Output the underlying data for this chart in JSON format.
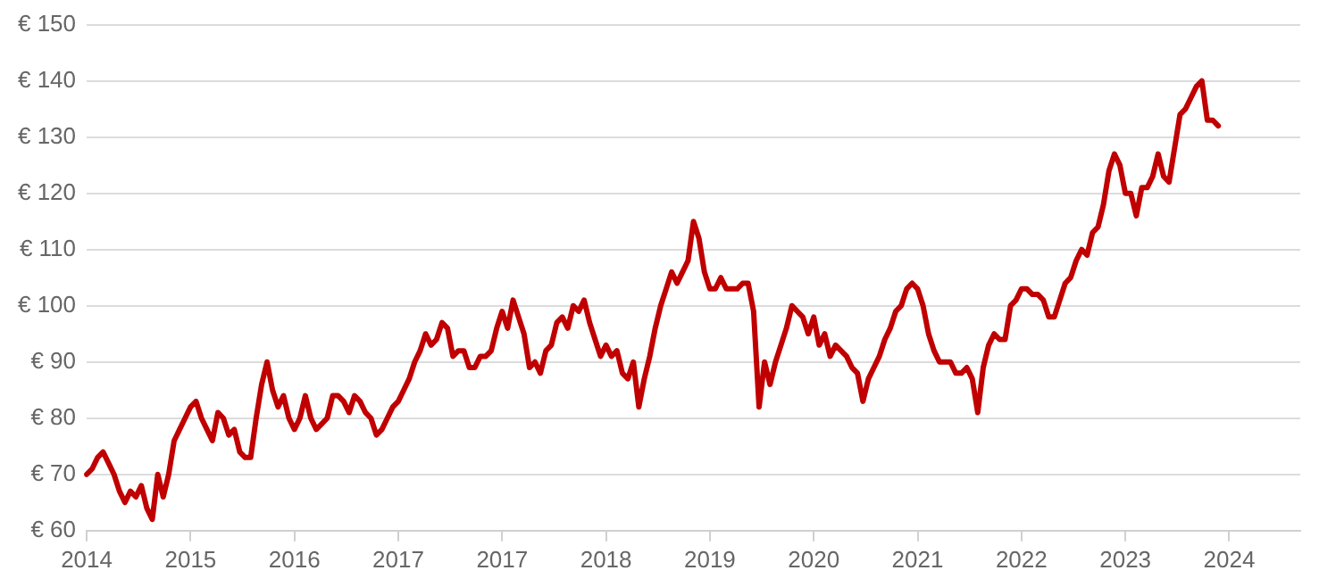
{
  "chart_data": {
    "type": "line",
    "grid": "y",
    "marker": "none",
    "line_style": "solid",
    "legend": false,
    "ylim": [
      60,
      150
    ],
    "yticks": [
      {
        "value": 60,
        "label": "€ 60"
      },
      {
        "value": 70,
        "label": "€ 70"
      },
      {
        "value": 80,
        "label": "€ 80"
      },
      {
        "value": 90,
        "label": "€ 90"
      },
      {
        "value": 100,
        "label": "€ 100"
      },
      {
        "value": 110,
        "label": "€ 110"
      },
      {
        "value": 120,
        "label": "€ 120"
      },
      {
        "value": 130,
        "label": "€ 130"
      },
      {
        "value": 140,
        "label": "€ 140"
      },
      {
        "value": 150,
        "label": "€ 150"
      }
    ],
    "categories": [
      "2014",
      null,
      null,
      null,
      null,
      null,
      null,
      null,
      null,
      null,
      null,
      null,
      null,
      null,
      null,
      null,
      null,
      null,
      null,
      "2015",
      null,
      null,
      null,
      null,
      null,
      null,
      null,
      null,
      null,
      null,
      null,
      null,
      null,
      null,
      null,
      null,
      null,
      null,
      "2016",
      null,
      null,
      null,
      null,
      null,
      null,
      null,
      null,
      null,
      null,
      null,
      null,
      null,
      null,
      null,
      null,
      null,
      null,
      "2017",
      null,
      null,
      null,
      null,
      null,
      null,
      null,
      null,
      null,
      null,
      null,
      null,
      null,
      null,
      null,
      null,
      null,
      null,
      "2017",
      null,
      null,
      null,
      null,
      null,
      null,
      null,
      null,
      null,
      null,
      null,
      null,
      null,
      null,
      null,
      null,
      null,
      null,
      "2018",
      null,
      null,
      null,
      null,
      null,
      null,
      null,
      null,
      null,
      null,
      null,
      null,
      null,
      null,
      null,
      null,
      null,
      null,
      "2019",
      null,
      null,
      null,
      null,
      null,
      null,
      null,
      null,
      null,
      null,
      null,
      null,
      null,
      null,
      null,
      null,
      null,
      null,
      "2020",
      null,
      null,
      null,
      null,
      null,
      null,
      null,
      null,
      null,
      null,
      null,
      null,
      null,
      null,
      null,
      null,
      null,
      null,
      "2021",
      null,
      null,
      null,
      null,
      null,
      null,
      null,
      null,
      null,
      null,
      null,
      null,
      null,
      null,
      null,
      null,
      null,
      null,
      "2022",
      null,
      null,
      null,
      null,
      null,
      null,
      null,
      null,
      null,
      null,
      null,
      null,
      null,
      null,
      null,
      null,
      null,
      null,
      "2023",
      null,
      null,
      null,
      null,
      null,
      null,
      null,
      null,
      null,
      null,
      null,
      null,
      null,
      null,
      null,
      null,
      null,
      null,
      "2024",
      null,
      null,
      null,
      null,
      null,
      null,
      null,
      null,
      null,
      null,
      null,
      null,
      null
    ],
    "series": [
      {
        "color": "#c00000",
        "values": [
          70,
          71,
          73,
          74,
          72,
          70,
          67,
          65,
          67,
          66,
          68,
          64,
          62,
          70,
          66,
          70,
          76,
          78,
          80,
          82,
          83,
          80,
          78,
          76,
          81,
          80,
          77,
          78,
          74,
          73,
          73,
          80,
          86,
          90,
          85,
          82,
          84,
          80,
          78,
          80,
          84,
          80,
          78,
          79,
          80,
          84,
          84,
          83,
          81,
          84,
          83,
          81,
          80,
          77,
          78,
          80,
          82,
          83,
          85,
          87,
          90,
          92,
          95,
          93,
          94,
          97,
          96,
          91,
          92,
          92,
          89,
          89,
          91,
          91,
          92,
          96,
          99,
          96,
          101,
          98,
          95,
          89,
          90,
          88,
          92,
          93,
          97,
          98,
          96,
          100,
          99,
          101,
          97,
          94,
          91,
          93,
          91,
          92,
          88,
          87,
          90,
          82,
          87,
          91,
          96,
          100,
          103,
          106,
          104,
          106,
          108,
          115,
          112,
          106,
          103,
          103,
          105,
          103,
          103,
          103,
          104,
          104,
          99,
          82,
          90,
          86,
          90,
          93,
          96,
          100,
          99,
          98,
          95,
          98,
          93,
          95,
          91,
          93,
          92,
          91,
          89,
          88,
          83,
          87,
          89,
          91,
          94,
          96,
          99,
          100,
          103,
          104,
          103,
          100,
          95,
          92,
          90,
          90,
          90,
          88,
          88,
          89,
          87,
          81,
          89,
          93,
          95,
          94,
          94,
          100,
          101,
          103,
          103,
          102,
          102,
          101,
          98,
          98,
          101,
          104,
          105,
          108,
          110,
          109,
          113,
          114,
          118,
          124,
          127,
          125,
          120,
          120,
          116,
          121,
          121,
          123,
          127,
          123,
          122,
          128,
          134,
          135,
          137,
          139,
          140,
          133,
          133,
          132,
          null,
          null,
          null,
          null,
          null,
          null,
          null,
          null,
          null,
          null,
          null,
          null,
          null,
          null,
          null
        ]
      }
    ]
  }
}
